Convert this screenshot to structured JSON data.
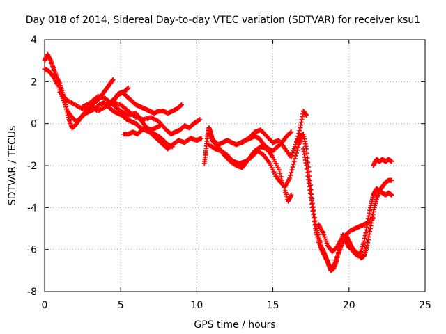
{
  "chart_data": {
    "type": "scatter",
    "title": "Day 018 of 2014, Sidereal Day-to-day VTEC variation (SDTVAR) for receiver ksu1",
    "xlabel": "GPS time / hours",
    "ylabel": "SDTVAR / TECUs",
    "xlim": [
      0,
      25
    ],
    "ylim": [
      -8,
      4
    ],
    "xticks": [
      0,
      5,
      10,
      15,
      20,
      25
    ],
    "yticks": [
      -8,
      -6,
      -4,
      -2,
      0,
      2,
      4
    ],
    "grid": true,
    "legend": "none",
    "marker": "+",
    "series_color": "#ff0000",
    "series": [
      {
        "x": [
          0.0,
          0.2,
          0.4,
          0.6,
          0.8,
          1.0,
          1.2,
          1.4,
          1.6,
          1.8,
          2.0,
          2.3,
          2.6,
          3.0,
          3.3,
          3.6,
          3.9,
          4.1,
          4.3,
          4.5
        ],
        "y": [
          3.0,
          3.3,
          3.0,
          2.6,
          2.2,
          1.9,
          1.4,
          0.8,
          0.2,
          -0.2,
          -0.1,
          0.2,
          0.5,
          0.8,
          1.0,
          1.2,
          1.5,
          1.7,
          1.9,
          2.1
        ]
      },
      {
        "x": [
          0.0,
          0.3,
          0.6,
          0.9,
          1.2,
          1.5,
          1.8,
          2.1,
          2.4,
          2.7,
          3.0,
          3.3,
          3.6,
          3.9,
          4.2,
          4.5,
          4.8,
          5.1,
          5.4,
          5.7,
          6.0,
          6.3,
          6.6,
          6.9,
          7.2,
          7.5,
          7.8,
          8.1,
          8.4
        ],
        "y": [
          2.6,
          2.5,
          2.2,
          1.8,
          1.2,
          0.6,
          0.3,
          0.1,
          0.3,
          0.5,
          0.6,
          0.7,
          0.9,
          1.0,
          0.8,
          0.6,
          0.5,
          0.4,
          0.2,
          0.1,
          0.0,
          -0.2,
          -0.3,
          -0.4,
          -0.5,
          -0.6,
          -0.8,
          -1.0,
          -1.1
        ]
      },
      {
        "x": [
          1.0,
          1.5,
          2.0,
          2.5,
          3.0,
          3.5,
          4.0,
          4.5,
          5.0,
          5.5,
          6.0,
          6.5,
          7.0,
          7.5,
          8.0,
          8.3,
          8.6,
          8.9,
          9.2,
          9.5,
          9.8,
          10.0,
          10.2
        ],
        "y": [
          1.5,
          1.1,
          0.9,
          0.7,
          0.8,
          0.6,
          0.8,
          1.0,
          0.9,
          0.6,
          0.3,
          0.2,
          0.3,
          0.1,
          -0.3,
          -0.5,
          -0.4,
          -0.3,
          -0.1,
          -0.2,
          0.0,
          0.1,
          0.2
        ]
      },
      {
        "x": [
          2.5,
          3.0,
          3.5,
          4.0,
          4.5,
          5.0,
          5.5,
          6.0,
          6.3,
          6.6,
          6.9,
          7.2,
          7.5,
          7.8,
          8.1,
          8.4,
          8.8,
          9.2,
          9.6,
          10.0,
          10.3
        ],
        "y": [
          0.8,
          1.0,
          1.3,
          1.2,
          0.9,
          0.6,
          0.4,
          0.5,
          0.2,
          -0.1,
          -0.4,
          -0.6,
          -0.8,
          -1.0,
          -1.2,
          -1.0,
          -0.8,
          -0.9,
          -0.7,
          -0.8,
          -0.7
        ]
      },
      {
        "x": [
          4.5,
          4.8,
          5.1,
          5.4,
          5.7,
          6.0,
          6.3,
          6.6,
          6.9,
          7.2,
          7.5,
          7.8,
          8.1,
          8.4,
          8.7,
          9.0
        ],
        "y": [
          1.0,
          1.4,
          1.5,
          1.3,
          1.1,
          0.9,
          0.8,
          0.7,
          0.6,
          0.5,
          0.6,
          0.6,
          0.5,
          0.6,
          0.7,
          0.9
        ]
      },
      {
        "x": [
          4.0,
          4.3,
          4.6,
          4.9,
          5.2,
          5.5
        ],
        "y": [
          0.9,
          1.0,
          1.2,
          1.4,
          1.5,
          1.7
        ]
      },
      {
        "x": [
          5.2,
          5.5,
          5.8,
          6.1,
          6.4,
          6.7,
          7.0,
          7.3,
          7.6
        ],
        "y": [
          -0.5,
          -0.5,
          -0.4,
          -0.5,
          -0.3,
          -0.2,
          -0.3,
          -0.2,
          -0.1
        ]
      },
      {
        "x": [
          10.5,
          10.6,
          10.7,
          10.8,
          10.9,
          11.0
        ],
        "y": [
          -1.9,
          -1.3,
          -0.6,
          -0.2,
          -0.4,
          -0.7
        ]
      },
      {
        "x": [
          10.8,
          11.1,
          11.4,
          11.7,
          12.0,
          12.3,
          12.6,
          12.9,
          13.2,
          13.5,
          13.8,
          14.1,
          14.4,
          14.7,
          15.0,
          15.3,
          15.6,
          15.9,
          16.2
        ],
        "y": [
          -0.5,
          -0.8,
          -1.0,
          -0.9,
          -0.8,
          -0.9,
          -1.0,
          -0.9,
          -0.8,
          -0.7,
          -0.6,
          -0.7,
          -1.0,
          -1.2,
          -1.3,
          -1.1,
          -0.9,
          -0.6,
          -0.4
        ]
      },
      {
        "x": [
          10.8,
          11.2,
          11.6,
          12.0,
          12.4,
          12.8,
          13.2,
          13.6,
          14.0,
          14.4,
          14.8,
          15.2,
          15.5,
          15.8,
          16.1,
          16.4,
          16.7,
          16.9
        ],
        "y": [
          -1.0,
          -1.2,
          -1.3,
          -1.5,
          -1.8,
          -1.9,
          -1.8,
          -1.6,
          -1.3,
          -1.5,
          -1.9,
          -2.5,
          -2.8,
          -3.0,
          -2.6,
          -1.8,
          -1.0,
          -0.6
        ]
      },
      {
        "x": [
          11.0,
          11.4,
          11.8,
          12.2,
          12.6,
          13.0,
          13.4,
          13.8,
          14.2,
          14.6,
          15.0,
          15.4,
          15.8,
          16.0,
          16.2
        ],
        "y": [
          -0.8,
          -1.1,
          -1.5,
          -1.8,
          -2.0,
          -2.1,
          -1.7,
          -1.3,
          -1.1,
          -1.2,
          -1.6,
          -2.2,
          -3.2,
          -3.7,
          -3.4
        ]
      },
      {
        "x": [
          13.0,
          13.4,
          13.8,
          14.2,
          14.6,
          15.0,
          15.4,
          15.8,
          16.2,
          16.5,
          16.8,
          17.0,
          17.2
        ],
        "y": [
          -0.9,
          -0.7,
          -0.4,
          -0.3,
          -0.6,
          -0.9,
          -0.8,
          -1.2,
          -1.6,
          -1.0,
          -0.2,
          0.6,
          0.4
        ]
      },
      {
        "x": [
          16.6,
          16.8,
          17.0,
          17.2,
          17.4,
          17.6,
          17.8,
          18.0,
          18.2,
          18.4,
          18.6,
          18.8,
          19.0,
          19.2,
          19.4,
          19.6,
          19.8,
          20.0,
          20.2,
          20.4,
          20.6,
          20.8,
          21.0,
          21.2,
          21.4,
          21.6,
          21.8,
          22.0,
          22.2,
          22.4,
          22.6,
          22.8
        ],
        "y": [
          -0.8,
          -0.6,
          -0.5,
          -1.2,
          -2.5,
          -3.8,
          -4.8,
          -5.4,
          -5.9,
          -6.2,
          -6.6,
          -6.9,
          -6.8,
          -6.4,
          -6.0,
          -5.6,
          -5.3,
          -5.6,
          -5.9,
          -6.1,
          -6.2,
          -6.4,
          -6.3,
          -5.8,
          -5.0,
          -4.2,
          -3.6,
          -3.2,
          -3.0,
          -2.8,
          -2.7,
          -2.7
        ]
      },
      {
        "x": [
          17.0,
          17.2,
          17.4,
          17.6,
          17.8,
          18.0,
          18.2,
          18.4,
          18.6,
          18.8,
          19.0,
          19.2,
          19.4,
          19.6,
          19.8,
          20.0,
          20.2,
          20.4,
          20.6,
          20.8,
          21.0,
          21.2,
          21.4,
          21.6,
          21.8,
          22.0,
          22.2,
          22.4,
          22.6,
          22.8
        ],
        "y": [
          -1.2,
          -2.0,
          -3.0,
          -4.0,
          -5.0,
          -5.6,
          -6.0,
          -6.3,
          -6.6,
          -7.0,
          -6.9,
          -6.5,
          -5.8,
          -5.3,
          -5.6,
          -5.9,
          -6.0,
          -6.2,
          -6.3,
          -6.1,
          -5.6,
          -4.8,
          -4.0,
          -3.4,
          -3.1,
          -3.2,
          -3.3,
          -3.4,
          -3.3,
          -3.4
        ]
      },
      {
        "x": [
          18.0,
          18.3,
          18.6,
          18.9,
          19.2,
          19.5,
          19.8,
          20.1,
          20.4,
          20.7,
          21.0,
          21.3,
          21.6
        ],
        "y": [
          -4.8,
          -5.2,
          -5.8,
          -6.1,
          -5.9,
          -5.5,
          -5.3,
          -5.1,
          -5.0,
          -4.9,
          -4.8,
          -4.7,
          -4.5
        ]
      },
      {
        "x": [
          21.6,
          21.8,
          22.0,
          22.2,
          22.4,
          22.6,
          22.8
        ],
        "y": [
          -2.0,
          -1.7,
          -1.8,
          -1.7,
          -1.8,
          -1.7,
          -1.8
        ]
      }
    ]
  }
}
